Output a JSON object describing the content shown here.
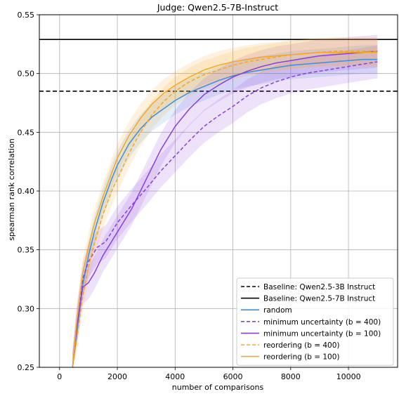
{
  "chart_data": {
    "type": "line",
    "title": "Judge: Qwen2.5-7B-Instruct",
    "xlabel": "number of comparisons",
    "ylabel": "spearman rank correlation",
    "xlim": [
      -700,
      11700
    ],
    "ylim": [
      0.25,
      0.55
    ],
    "xticks": [
      0,
      2000,
      4000,
      6000,
      8000,
      10000
    ],
    "yticks": [
      0.25,
      0.3,
      0.35,
      0.4,
      0.45,
      0.5,
      0.55
    ],
    "xtick_labels": [
      "0",
      "2000",
      "4000",
      "6000",
      "8000",
      "10000"
    ],
    "ytick_labels": [
      "0.25",
      "0.30",
      "0.35",
      "0.40",
      "0.45",
      "0.50",
      "0.55"
    ],
    "grid": true,
    "legend_position": "lower-right",
    "baselines": [
      {
        "name": "Baseline: Qwen2.5-3B Instruct",
        "value": 0.485,
        "color": "#000000",
        "dash": true
      },
      {
        "name": "Baseline: Qwen2.5-7B Instruct",
        "value": 0.529,
        "color": "#000000",
        "dash": false
      }
    ],
    "series": [
      {
        "name": "random",
        "color": "#3b8fe0",
        "dash": false,
        "band": 0.012,
        "x": [
          450,
          600,
          800,
          1000,
          1200,
          1500,
          1800,
          2000,
          2400,
          2800,
          3200,
          3600,
          4000,
          4500,
          5000,
          5500,
          6000,
          6500,
          7000,
          7500,
          8000,
          8500,
          9000,
          9500,
          10000,
          10500,
          11000
        ],
        "y": [
          0.25,
          0.28,
          0.32,
          0.345,
          0.365,
          0.39,
          0.41,
          0.422,
          0.44,
          0.453,
          0.463,
          0.47,
          0.477,
          0.484,
          0.489,
          0.494,
          0.498,
          0.501,
          0.503,
          0.505,
          0.507,
          0.508,
          0.509,
          0.51,
          0.511,
          0.512,
          0.512
        ]
      },
      {
        "name": "minimum uncertainty (b = 400)",
        "color": "#8a3fe0",
        "dash": true,
        "band": 0.014,
        "x": [
          450,
          600,
          800,
          1000,
          1300,
          1600,
          2000,
          2500,
          3000,
          3500,
          4000,
          4500,
          5000,
          5500,
          6000,
          6500,
          7000,
          7500,
          8000,
          8500,
          9000,
          9500,
          10000,
          10500,
          11000
        ],
        "y": [
          0.25,
          0.29,
          0.325,
          0.34,
          0.352,
          0.357,
          0.373,
          0.388,
          0.402,
          0.417,
          0.43,
          0.443,
          0.455,
          0.464,
          0.472,
          0.481,
          0.488,
          0.493,
          0.497,
          0.5,
          0.502,
          0.504,
          0.506,
          0.508,
          0.51
        ]
      },
      {
        "name": "minimum uncertainty (b = 100)",
        "color": "#8a3fe0",
        "dash": false,
        "band": 0.014,
        "x": [
          450,
          600,
          800,
          1000,
          1200,
          1500,
          2000,
          2500,
          3000,
          3500,
          4000,
          4500,
          5000,
          5500,
          6000,
          6500,
          7000,
          7500,
          8000,
          8500,
          9000,
          9500,
          10000,
          10500,
          11000
        ],
        "y": [
          0.25,
          0.285,
          0.318,
          0.322,
          0.33,
          0.345,
          0.365,
          0.385,
          0.41,
          0.435,
          0.455,
          0.47,
          0.482,
          0.49,
          0.497,
          0.502,
          0.506,
          0.509,
          0.511,
          0.513,
          0.515,
          0.516,
          0.517,
          0.518,
          0.519
        ]
      },
      {
        "name": "reordering (b = 400)",
        "color": "#f5a623",
        "dash": true,
        "band": 0.012,
        "x": [
          450,
          600,
          800,
          1000,
          1200,
          1500,
          1800,
          2000,
          2400,
          2800,
          3200,
          3600,
          4000,
          4500,
          5000,
          5500,
          6000,
          6500,
          7000,
          7500,
          8000,
          8500,
          9000,
          9500,
          10000,
          10500,
          11000
        ],
        "y": [
          0.25,
          0.275,
          0.31,
          0.335,
          0.355,
          0.38,
          0.4,
          0.41,
          0.432,
          0.45,
          0.465,
          0.476,
          0.485,
          0.493,
          0.499,
          0.503,
          0.507,
          0.51,
          0.512,
          0.514,
          0.516,
          0.517,
          0.518,
          0.519,
          0.519,
          0.519,
          0.519
        ]
      },
      {
        "name": "reordering (b = 100)",
        "color": "#f5a623",
        "dash": false,
        "band": 0.012,
        "x": [
          450,
          600,
          800,
          1000,
          1200,
          1500,
          1800,
          2000,
          2400,
          2800,
          3200,
          3600,
          4000,
          4500,
          5000,
          5500,
          6000,
          6500,
          7000,
          7500,
          8000,
          8500,
          9000,
          9500,
          10000,
          10500,
          11000
        ],
        "y": [
          0.25,
          0.29,
          0.33,
          0.352,
          0.372,
          0.395,
          0.415,
          0.428,
          0.447,
          0.462,
          0.474,
          0.483,
          0.49,
          0.497,
          0.503,
          0.507,
          0.51,
          0.512,
          0.514,
          0.515,
          0.516,
          0.517,
          0.518,
          0.518,
          0.518,
          0.518,
          0.518
        ]
      }
    ]
  }
}
